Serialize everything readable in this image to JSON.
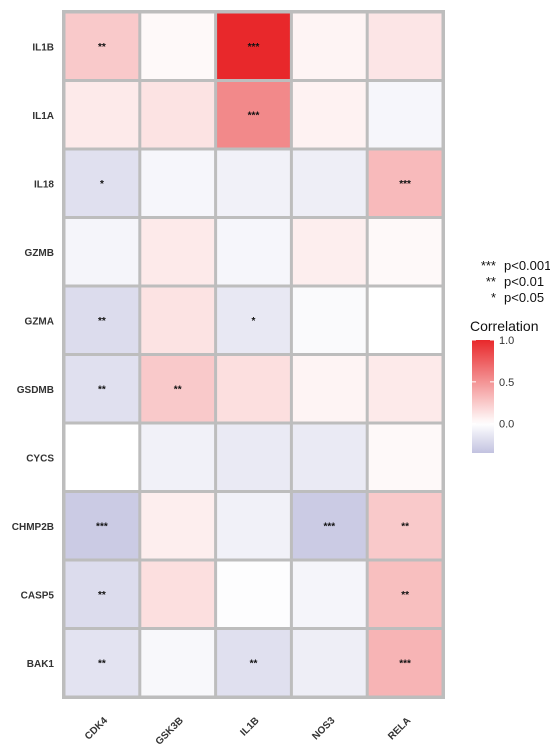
{
  "chart_data": {
    "type": "heatmap",
    "rows": [
      "IL1B",
      "IL1A",
      "IL18",
      "GZMB",
      "GZMA",
      "GSDMB",
      "CYCS",
      "CHMP2B",
      "CASP5",
      "BAK1"
    ],
    "columns": [
      "CDK4",
      "GSK3B",
      "IL1B",
      "NOS3",
      "RELA"
    ],
    "values": [
      [
        0.25,
        0.03,
        1.0,
        0.05,
        0.12
      ],
      [
        0.1,
        0.13,
        0.55,
        0.06,
        -0.05
      ],
      [
        -0.18,
        -0.05,
        -0.08,
        -0.1,
        0.32
      ],
      [
        -0.06,
        0.1,
        -0.05,
        0.08,
        0.03
      ],
      [
        -0.2,
        0.13,
        -0.13,
        -0.03,
        0.0
      ],
      [
        -0.18,
        0.25,
        0.15,
        0.05,
        0.1
      ],
      [
        0.0,
        -0.08,
        -0.12,
        -0.12,
        0.03
      ],
      [
        -0.3,
        0.08,
        -0.08,
        -0.3,
        0.25
      ],
      [
        -0.2,
        0.15,
        -0.01,
        -0.06,
        0.3
      ],
      [
        -0.16,
        -0.04,
        -0.18,
        -0.1,
        0.35
      ]
    ],
    "significance": [
      [
        "**",
        "",
        "***",
        "",
        ""
      ],
      [
        "",
        "",
        "***",
        "",
        ""
      ],
      [
        "*",
        "",
        "",
        "",
        "***"
      ],
      [
        "",
        "",
        "",
        "",
        ""
      ],
      [
        "**",
        "",
        "*",
        "",
        ""
      ],
      [
        "**",
        "**",
        "",
        "",
        ""
      ],
      [
        "",
        "",
        "",
        "",
        ""
      ],
      [
        "***",
        "",
        "",
        "***",
        "**"
      ],
      [
        "**",
        "",
        "",
        "",
        "**"
      ],
      [
        "**",
        "",
        "**",
        "",
        "***"
      ]
    ],
    "color_scale": {
      "low": "#c2c2e0",
      "mid": "#ffffff",
      "high": "#e8282b",
      "min": -0.35,
      "mid_value": 0.0,
      "max": 1.0
    },
    "colorbar": {
      "title": "Correlation",
      "ticks": [
        1.0,
        0.5,
        0.0
      ],
      "tick_labels": [
        "1.0",
        "0.5",
        "0.0"
      ]
    },
    "significance_legend": [
      {
        "symbol": "***",
        "label": "p<0.001"
      },
      {
        "symbol": "**",
        "label": "p<0.01"
      },
      {
        "symbol": "*",
        "label": "p<0.05"
      }
    ],
    "grid_color": "#bdbdbd",
    "legend_position": "right"
  }
}
